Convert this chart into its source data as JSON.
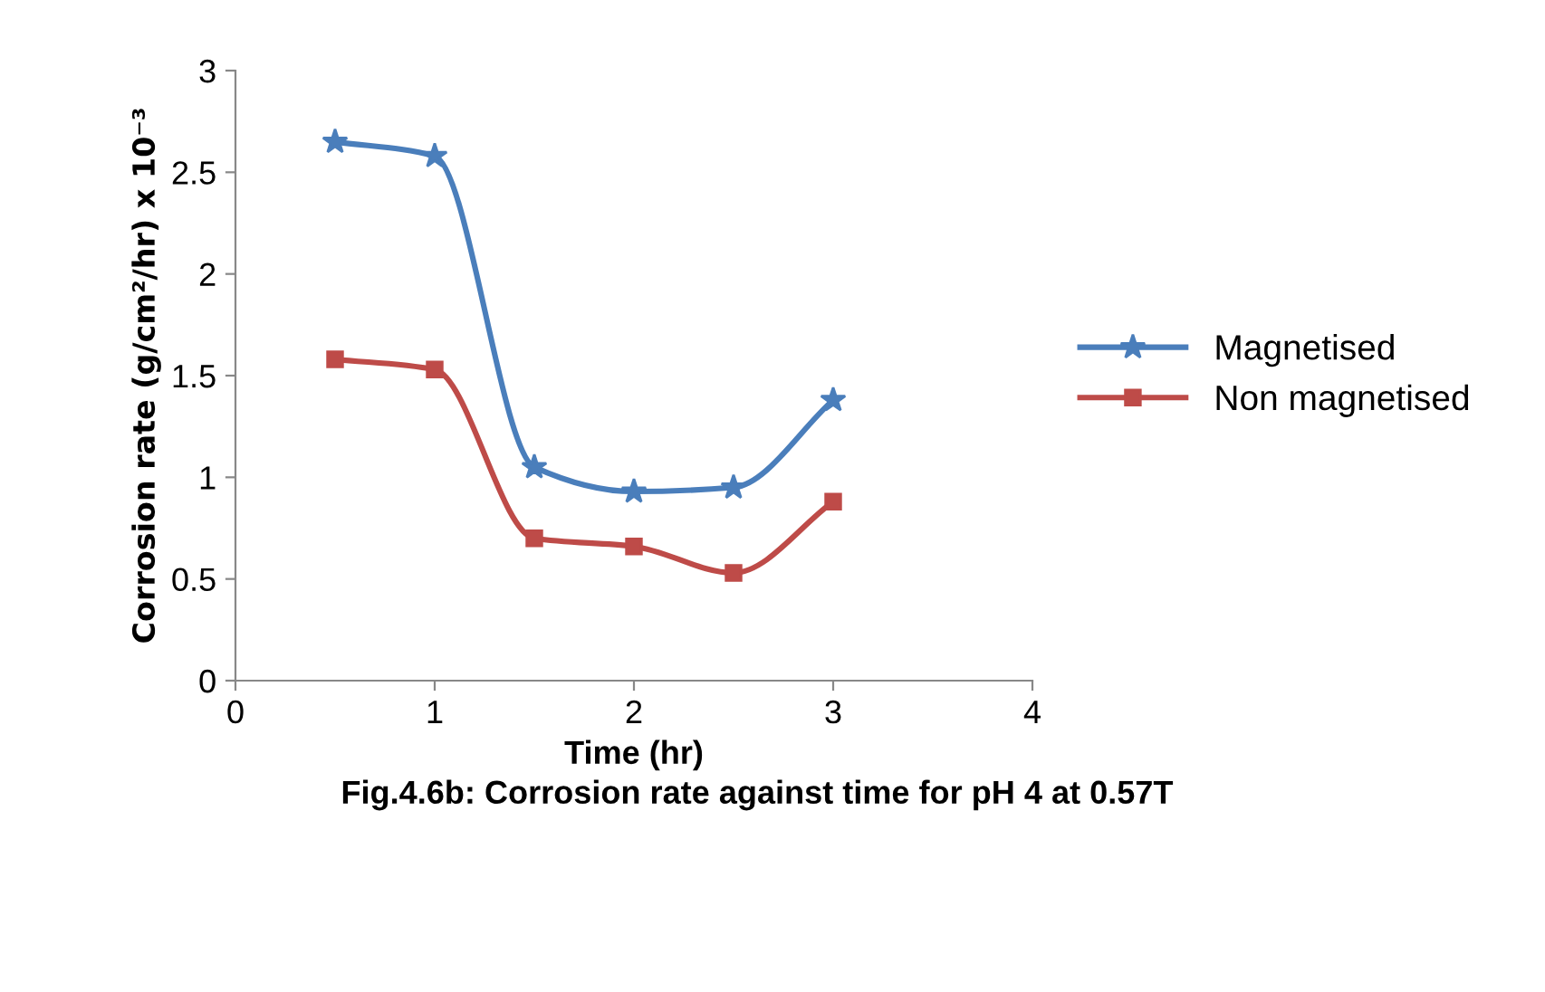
{
  "chart_data": {
    "type": "line",
    "xlabel": "Time (hr)",
    "ylabel": "Corrosion rate (g/cm²/hr) x 10⁻³",
    "x": [
      0.5,
      1,
      1.5,
      2,
      2.5,
      3
    ],
    "series": [
      {
        "name": "Magnetised",
        "color": "#4a7ebb",
        "marker": "star",
        "values": [
          2.65,
          2.58,
          1.05,
          0.93,
          0.95,
          1.38
        ]
      },
      {
        "name": "Non magnetised",
        "color": "#be4b48",
        "marker": "square",
        "values": [
          1.58,
          1.53,
          0.7,
          0.66,
          0.53,
          0.88
        ]
      }
    ],
    "xlim": [
      0,
      4
    ],
    "xticks": [
      0,
      1,
      2,
      3,
      4
    ],
    "ylim": [
      0,
      3
    ],
    "yticks": [
      0,
      0.5,
      1,
      1.5,
      2,
      2.5,
      3
    ],
    "grid": false,
    "legend": "right",
    "line_style": "solid",
    "annotations": [
      "Fig.4.6b: Corrosion rate against time for pH 4 at 0.57T"
    ]
  }
}
